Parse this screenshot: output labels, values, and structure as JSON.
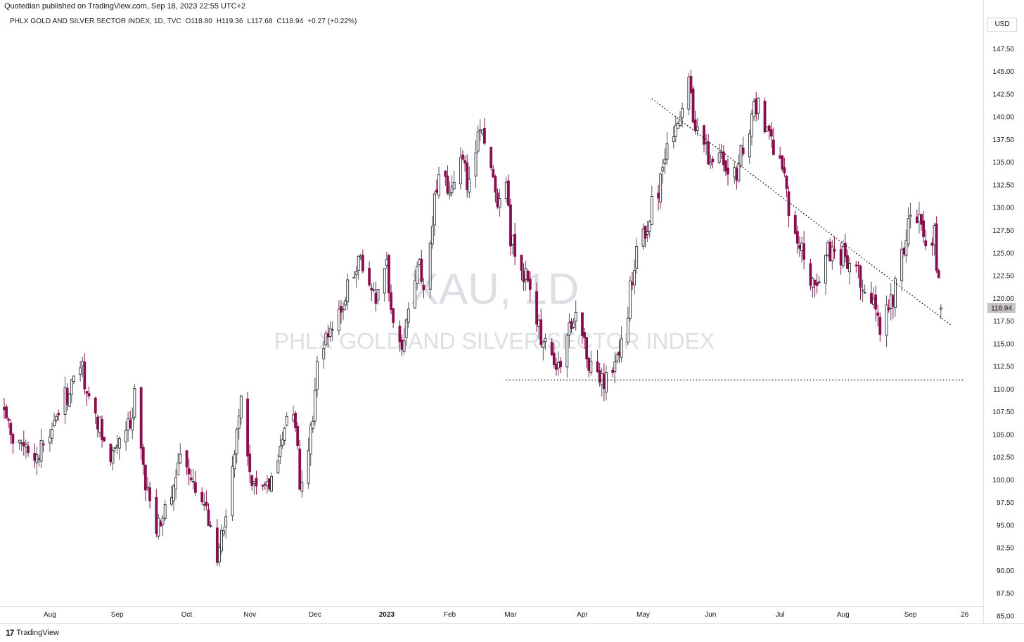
{
  "header": {
    "publisher_text": "Quotedian published on TradingView.com, Sep 18, 2023 22:55 UTC+2",
    "symbol_name": "PHLX GOLD AND SILVER SECTOR INDEX, 1D, TVC",
    "ohlc": {
      "o": "O118.80",
      "h": "H119.36",
      "l": "L117.68",
      "c": "C118.94"
    },
    "change": "+0.27 (+0.22%)",
    "currency": "USD"
  },
  "watermark": {
    "line1": "XAU, 1D",
    "line2": "PHLX GOLD AND SILVER SECTOR INDEX"
  },
  "footer": {
    "logo_mark": "17",
    "logo_text": "TradingView"
  },
  "colors": {
    "up_fill": "#ffffff",
    "up_border": "#131722",
    "down_fill": "#880e4f",
    "down_border": "#880e4f",
    "wick": "#000000",
    "grid": "#eef0f3",
    "last_price_badge": "#c9c3c0"
  },
  "chart_data": {
    "type": "candlestick",
    "title": "PHLX GOLD AND SILVER SECTOR INDEX, 1D, TVC",
    "last_price": 118.94,
    "last_price_label": "118.94",
    "ylim": [
      85,
      149
    ],
    "y_ticks": [
      85,
      87.5,
      90,
      92.5,
      95,
      97.5,
      100,
      102.5,
      105,
      107.5,
      110,
      112.5,
      115,
      117.5,
      120,
      122.5,
      125,
      127.5,
      130,
      132.5,
      135,
      137.5,
      140,
      142.5,
      145,
      147.5
    ],
    "y_tick_labels": [
      "85.00",
      "87.50",
      "90.00",
      "92.50",
      "95.00",
      "97.50",
      "100.00",
      "102.50",
      "105.00",
      "107.50",
      "110.00",
      "112.50",
      "115.00",
      "117.50",
      "120.00",
      "122.50",
      "125.00",
      "127.50",
      "130.00",
      "132.50",
      "135.00",
      "137.50",
      "140.00",
      "142.50",
      "145.00",
      "147.50"
    ],
    "x_range": [
      "2022-07-11",
      "2023-09-28"
    ],
    "x_ticks": [
      {
        "date": "2022-08-01",
        "label": "Aug",
        "bold": false
      },
      {
        "date": "2022-09-01",
        "label": "Sep",
        "bold": false
      },
      {
        "date": "2022-10-03",
        "label": "Oct",
        "bold": false
      },
      {
        "date": "2022-11-01",
        "label": "Nov",
        "bold": false
      },
      {
        "date": "2022-12-01",
        "label": "Dec",
        "bold": false
      },
      {
        "date": "2023-01-03",
        "label": "2023",
        "bold": true
      },
      {
        "date": "2023-02-01",
        "label": "Feb",
        "bold": false
      },
      {
        "date": "2023-03-01",
        "label": "Mar",
        "bold": false
      },
      {
        "date": "2023-04-03",
        "label": "Apr",
        "bold": false
      },
      {
        "date": "2023-05-01",
        "label": "May",
        "bold": false
      },
      {
        "date": "2023-06-01",
        "label": "Jun",
        "bold": false
      },
      {
        "date": "2023-07-03",
        "label": "Jul",
        "bold": false
      },
      {
        "date": "2023-08-01",
        "label": "Aug",
        "bold": false
      },
      {
        "date": "2023-09-01",
        "label": "Sep",
        "bold": false
      },
      {
        "date": "2023-09-26",
        "label": "26",
        "bold": false
      }
    ],
    "trendlines": [
      {
        "name": "descending-resistance",
        "from": {
          "date": "2023-05-05",
          "value": 142.0
        },
        "to": {
          "date": "2023-09-20",
          "value": 117.0
        }
      },
      {
        "name": "horizontal-support",
        "from": {
          "date": "2023-02-27",
          "value": 111.0
        },
        "to": {
          "date": "2023-09-26",
          "value": 111.0
        }
      }
    ],
    "anchors": [
      {
        "date": "2022-07-11",
        "close": 107.0
      },
      {
        "date": "2022-07-18",
        "close": 104.0
      },
      {
        "date": "2022-07-25",
        "close": 101.0
      },
      {
        "date": "2022-08-01",
        "close": 106.0
      },
      {
        "date": "2022-08-08",
        "close": 109.0
      },
      {
        "date": "2022-08-15",
        "close": 113.0
      },
      {
        "date": "2022-08-22",
        "close": 107.0
      },
      {
        "date": "2022-08-29",
        "close": 103.0
      },
      {
        "date": "2022-09-05",
        "close": 105.0
      },
      {
        "date": "2022-09-09",
        "close": 109.0
      },
      {
        "date": "2022-09-14",
        "close": 99.0
      },
      {
        "date": "2022-09-19",
        "close": 95.0
      },
      {
        "date": "2022-09-26",
        "close": 98.5
      },
      {
        "date": "2022-09-30",
        "close": 104.0
      },
      {
        "date": "2022-10-06",
        "close": 100.0
      },
      {
        "date": "2022-10-12",
        "close": 96.0
      },
      {
        "date": "2022-10-17",
        "close": 92.0
      },
      {
        "date": "2022-10-21",
        "close": 96.0
      },
      {
        "date": "2022-10-25",
        "close": 104.0
      },
      {
        "date": "2022-10-28",
        "close": 108.0
      },
      {
        "date": "2022-11-02",
        "close": 100.0
      },
      {
        "date": "2022-11-07",
        "close": 99.0
      },
      {
        "date": "2022-11-10",
        "close": 99.5
      },
      {
        "date": "2022-11-16",
        "close": 105.0
      },
      {
        "date": "2022-11-21",
        "close": 108.0
      },
      {
        "date": "2022-11-24",
        "close": 100.0
      },
      {
        "date": "2022-11-29",
        "close": 105.0
      },
      {
        "date": "2022-12-02",
        "close": 112.0
      },
      {
        "date": "2022-12-07",
        "close": 117.0
      },
      {
        "date": "2022-12-12",
        "close": 118.0
      },
      {
        "date": "2022-12-16",
        "close": 121.0
      },
      {
        "date": "2022-12-21",
        "close": 124.0
      },
      {
        "date": "2022-12-29",
        "close": 120.0
      },
      {
        "date": "2023-01-03",
        "close": 123.0
      },
      {
        "date": "2023-01-06",
        "close": 118.0
      },
      {
        "date": "2023-01-10",
        "close": 114.0
      },
      {
        "date": "2023-01-13",
        "close": 119.0
      },
      {
        "date": "2023-01-17",
        "close": 124.0
      },
      {
        "date": "2023-01-20",
        "close": 121.0
      },
      {
        "date": "2023-01-24",
        "close": 129.0
      },
      {
        "date": "2023-01-27",
        "close": 133.0
      },
      {
        "date": "2023-02-01",
        "close": 132.0
      },
      {
        "date": "2023-02-06",
        "close": 136.0
      },
      {
        "date": "2023-02-09",
        "close": 133.0
      },
      {
        "date": "2023-02-13",
        "close": 137.0
      },
      {
        "date": "2023-02-16",
        "close": 138.5
      },
      {
        "date": "2023-02-20",
        "close": 134.0
      },
      {
        "date": "2023-02-23",
        "close": 131.0
      },
      {
        "date": "2023-02-27",
        "close": 133.0
      },
      {
        "date": "2023-03-01",
        "close": 127.0
      },
      {
        "date": "2023-03-03",
        "close": 125.0
      },
      {
        "date": "2023-03-07",
        "close": 123.0
      },
      {
        "date": "2023-03-09",
        "close": 121.0
      },
      {
        "date": "2023-03-13",
        "close": 118.0
      },
      {
        "date": "2023-03-16",
        "close": 115.0
      },
      {
        "date": "2023-03-20",
        "close": 113.0
      },
      {
        "date": "2023-03-23",
        "close": 112.0
      },
      {
        "date": "2023-03-27",
        "close": 116.0
      },
      {
        "date": "2023-03-30",
        "close": 118.0
      },
      {
        "date": "2023-04-03",
        "close": 117.0
      },
      {
        "date": "2023-04-06",
        "close": 113.0
      },
      {
        "date": "2023-04-10",
        "close": 111.0
      },
      {
        "date": "2023-04-13",
        "close": 110.5
      },
      {
        "date": "2023-04-17",
        "close": 112.0
      },
      {
        "date": "2023-04-20",
        "close": 115.0
      },
      {
        "date": "2023-04-24",
        "close": 119.0
      },
      {
        "date": "2023-04-27",
        "close": 124.0
      },
      {
        "date": "2023-05-02",
        "close": 127.0
      },
      {
        "date": "2023-05-05",
        "close": 130.0
      },
      {
        "date": "2023-05-09",
        "close": 133.0
      },
      {
        "date": "2023-05-12",
        "close": 136.0
      },
      {
        "date": "2023-05-16",
        "close": 139.0
      },
      {
        "date": "2023-05-19",
        "close": 141.0
      },
      {
        "date": "2023-05-22",
        "close": 143.5
      },
      {
        "date": "2023-05-25",
        "close": 139.0
      },
      {
        "date": "2023-05-30",
        "close": 137.0
      },
      {
        "date": "2023-06-02",
        "close": 134.0
      },
      {
        "date": "2023-06-06",
        "close": 136.0
      },
      {
        "date": "2023-06-09",
        "close": 134.0
      },
      {
        "date": "2023-06-13",
        "close": 133.0
      },
      {
        "date": "2023-06-16",
        "close": 137.0
      },
      {
        "date": "2023-06-20",
        "close": 140.0
      },
      {
        "date": "2023-06-23",
        "close": 141.5
      },
      {
        "date": "2023-06-27",
        "close": 139.0
      },
      {
        "date": "2023-06-30",
        "close": 137.0
      },
      {
        "date": "2023-07-05",
        "close": 133.0
      },
      {
        "date": "2023-07-07",
        "close": 130.0
      },
      {
        "date": "2023-07-11",
        "close": 127.0
      },
      {
        "date": "2023-07-14",
        "close": 124.0
      },
      {
        "date": "2023-07-18",
        "close": 121.0
      },
      {
        "date": "2023-07-21",
        "close": 123.0
      },
      {
        "date": "2023-07-25",
        "close": 126.0
      },
      {
        "date": "2023-07-28",
        "close": 124.0
      },
      {
        "date": "2023-08-01",
        "close": 125.0
      },
      {
        "date": "2023-08-04",
        "close": 124.0
      },
      {
        "date": "2023-08-08",
        "close": 123.0
      },
      {
        "date": "2023-08-11",
        "close": 121.0
      },
      {
        "date": "2023-08-15",
        "close": 119.0
      },
      {
        "date": "2023-08-18",
        "close": 117.0
      },
      {
        "date": "2023-08-22",
        "close": 119.0
      },
      {
        "date": "2023-08-25",
        "close": 121.0
      },
      {
        "date": "2023-08-29",
        "close": 126.0
      },
      {
        "date": "2023-09-01",
        "close": 129.0
      },
      {
        "date": "2023-09-05",
        "close": 128.0
      },
      {
        "date": "2023-09-08",
        "close": 126.0
      },
      {
        "date": "2023-09-12",
        "close": 127.0
      },
      {
        "date": "2023-09-15",
        "close": 118.94
      }
    ]
  }
}
